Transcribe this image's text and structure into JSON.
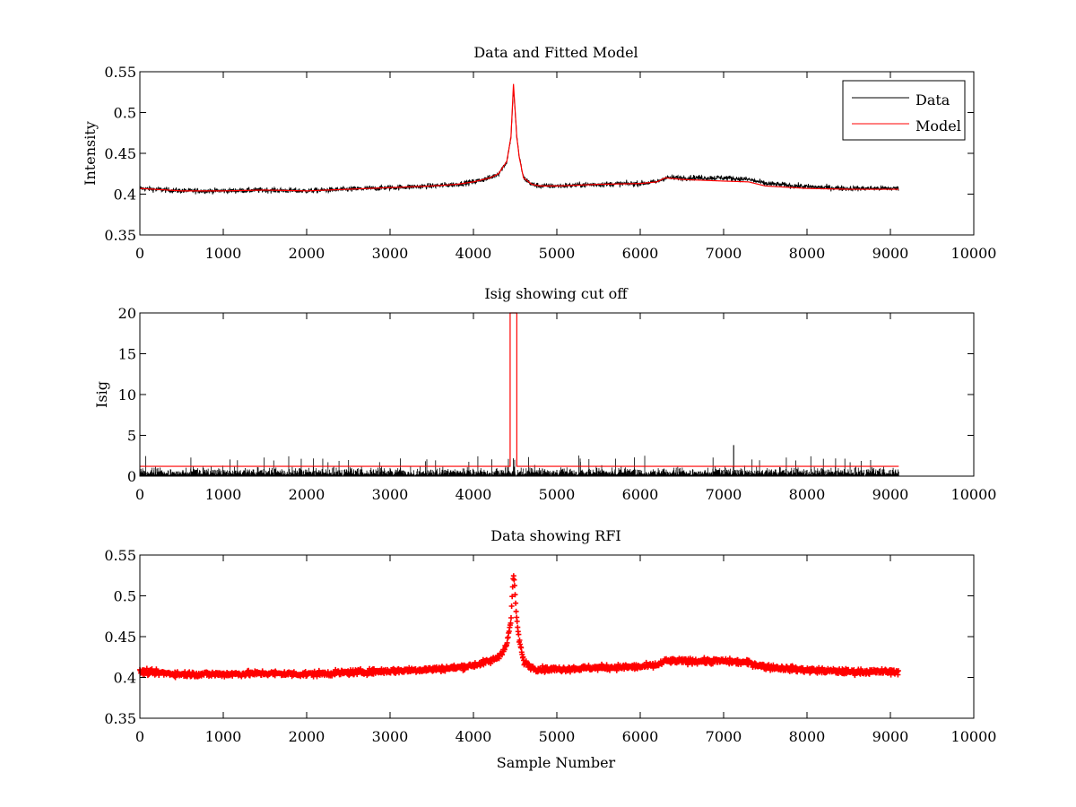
{
  "figure": {
    "background": "#ffffff",
    "colors": {
      "data": "#000000",
      "model": "#ff0000",
      "rfi": "#ff0000",
      "axes": "#000000"
    }
  },
  "chart_data": [
    {
      "type": "line",
      "title": "Data and Fitted Model",
      "xlabel": "",
      "ylabel": "Intensity",
      "xlim": [
        0,
        10000
      ],
      "ylim": [
        0.35,
        0.55
      ],
      "xticks": [
        0,
        1000,
        2000,
        3000,
        4000,
        5000,
        6000,
        7000,
        8000,
        9000,
        10000
      ],
      "yticks": [
        0.35,
        0.4,
        0.45,
        0.5,
        0.55
      ],
      "ytick_labels": [
        "0.35",
        "0.4",
        "0.45",
        "0.5",
        "0.55"
      ],
      "grid": false,
      "legend": {
        "placement": "top-right",
        "entries": [
          "Data",
          "Model"
        ]
      },
      "series": [
        {
          "name": "Data",
          "color": "#000000",
          "style": "noisy-line",
          "noise_amplitude": 0.006,
          "x": [
            0,
            500,
            1000,
            1500,
            2000,
            2500,
            3000,
            3500,
            3800,
            4000,
            4200,
            4300,
            4400,
            4450,
            4480,
            4520,
            4550,
            4600,
            4700,
            4800,
            5000,
            5500,
            6000,
            6200,
            6300,
            6500,
            7000,
            7300,
            7500,
            8000,
            8500,
            9100
          ],
          "y": [
            0.407,
            0.404,
            0.404,
            0.405,
            0.404,
            0.406,
            0.408,
            0.41,
            0.412,
            0.415,
            0.42,
            0.425,
            0.44,
            0.47,
            0.53,
            0.47,
            0.445,
            0.42,
            0.412,
            0.41,
            0.41,
            0.412,
            0.413,
            0.415,
            0.42,
            0.42,
            0.42,
            0.418,
            0.413,
            0.409,
            0.407,
            0.407
          ]
        },
        {
          "name": "Model",
          "color": "#ff0000",
          "style": "line",
          "x": [
            0,
            500,
            1000,
            1500,
            2000,
            2500,
            3000,
            3500,
            3800,
            4000,
            4200,
            4300,
            4400,
            4450,
            4480,
            4520,
            4550,
            4600,
            4700,
            4800,
            5000,
            5500,
            6000,
            6200,
            6300,
            6500,
            7000,
            7300,
            7500,
            8000,
            8500,
            9100
          ],
          "y": [
            0.407,
            0.404,
            0.404,
            0.405,
            0.404,
            0.406,
            0.408,
            0.41,
            0.412,
            0.415,
            0.42,
            0.425,
            0.44,
            0.47,
            0.535,
            0.47,
            0.445,
            0.42,
            0.412,
            0.41,
            0.41,
            0.412,
            0.413,
            0.415,
            0.42,
            0.418,
            0.416,
            0.415,
            0.41,
            0.407,
            0.406,
            0.406
          ]
        }
      ]
    },
    {
      "type": "line",
      "title": "Isig showing cut off",
      "xlabel": "",
      "ylabel": "Isig",
      "xlim": [
        0,
        10000
      ],
      "ylim": [
        0,
        20
      ],
      "xticks": [
        0,
        1000,
        2000,
        3000,
        4000,
        5000,
        6000,
        7000,
        8000,
        9000,
        10000
      ],
      "yticks": [
        0,
        5,
        10,
        15,
        20
      ],
      "ytick_labels": [
        "0",
        "5",
        "10",
        "15",
        "20"
      ],
      "grid": false,
      "series": [
        {
          "color": "#000000",
          "style": "spikes",
          "x_range": [
            0,
            9100
          ],
          "baseline": 0,
          "typical_max": 2.0,
          "peak_max": 3.8,
          "peak_at": 7120
        },
        {
          "color": "#ff0000",
          "style": "step",
          "x": [
            0,
            4440,
            4440,
            4520,
            4520,
            9100
          ],
          "y": [
            1.2,
            1.2,
            20,
            20,
            1.2,
            1.2
          ]
        }
      ]
    },
    {
      "type": "scatter",
      "title": "Data showing RFI",
      "xlabel": "Sample Number",
      "ylabel": "",
      "xlim": [
        0,
        10000
      ],
      "ylim": [
        0.35,
        0.55
      ],
      "xticks": [
        0,
        1000,
        2000,
        3000,
        4000,
        5000,
        6000,
        7000,
        8000,
        9000,
        10000
      ],
      "yticks": [
        0.35,
        0.4,
        0.45,
        0.5,
        0.55
      ],
      "ytick_labels": [
        "0.35",
        "0.4",
        "0.45",
        "0.5",
        "0.55"
      ],
      "grid": false,
      "series": [
        {
          "color": "#ff0000",
          "marker": "+",
          "noise_amplitude": 0.006,
          "x": [
            0,
            500,
            1000,
            1500,
            2000,
            2500,
            3000,
            3500,
            3800,
            4000,
            4200,
            4300,
            4400,
            4450,
            4480,
            4520,
            4550,
            4600,
            4700,
            4800,
            5000,
            5500,
            6000,
            6200,
            6300,
            6500,
            7000,
            7300,
            7500,
            8000,
            8500,
            9100
          ],
          "y": [
            0.407,
            0.404,
            0.404,
            0.405,
            0.404,
            0.406,
            0.408,
            0.41,
            0.412,
            0.415,
            0.42,
            0.425,
            0.44,
            0.47,
            0.53,
            0.47,
            0.445,
            0.42,
            0.412,
            0.41,
            0.41,
            0.412,
            0.413,
            0.415,
            0.42,
            0.42,
            0.42,
            0.418,
            0.413,
            0.409,
            0.407,
            0.407
          ]
        }
      ]
    }
  ]
}
